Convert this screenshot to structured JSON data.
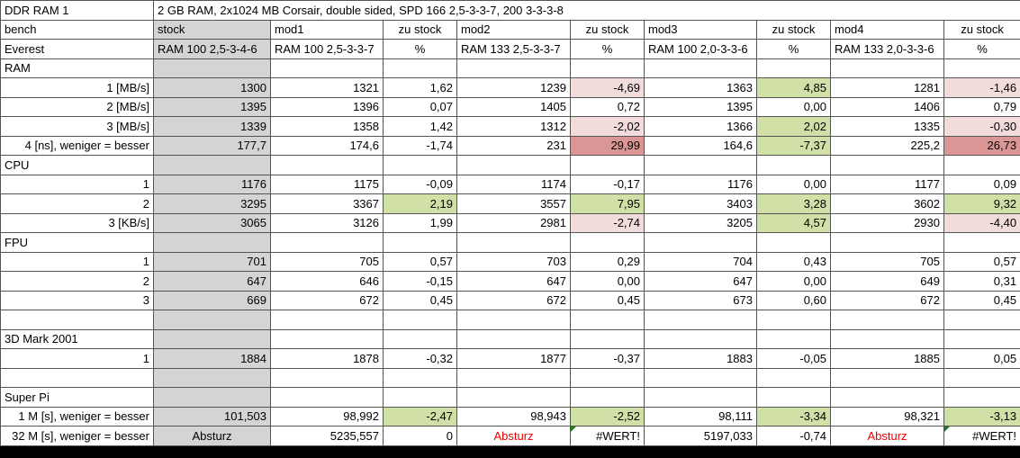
{
  "title": {
    "label": "DDR RAM 1",
    "description": "2 GB RAM, 2x1024 MB Corsair, double sided, SPD 166 2,5-3-3-7, 200 3-3-3-8"
  },
  "columns": {
    "header1": [
      "bench",
      "stock",
      "mod1",
      "zu stock",
      "mod2",
      "zu stock",
      "mod3",
      "zu stock",
      "mod4",
      "zu stock"
    ],
    "header2": [
      "Everest",
      "RAM 100 2,5-3-4-6",
      "RAM 100 2,5-3-3-7",
      "%",
      "RAM 133 2,5-3-3-7",
      "%",
      "RAM 100 2,0-3-3-6",
      "%",
      "RAM 133 2,0-3-3-6",
      "%"
    ]
  },
  "rows": [
    {
      "label": "RAM",
      "section": true
    },
    {
      "label": "1 [MB/s]",
      "cells": [
        "1300",
        "1321",
        "1,62",
        "1239",
        {
          "v": "-4,69",
          "bg": "pink"
        },
        "1363",
        {
          "v": "4,85",
          "bg": "green"
        },
        "1281",
        {
          "v": "-1,46",
          "bg": "pink"
        }
      ]
    },
    {
      "label": "2 [MB/s]",
      "cells": [
        "1395",
        "1396",
        "0,07",
        "1405",
        "0,72",
        "1395",
        "0,00",
        "1406",
        "0,79"
      ]
    },
    {
      "label": "3 [MB/s]",
      "cells": [
        "1339",
        "1358",
        "1,42",
        "1312",
        {
          "v": "-2,02",
          "bg": "pink"
        },
        "1366",
        {
          "v": "2,02",
          "bg": "green"
        },
        "1335",
        {
          "v": "-0,30",
          "bg": "pink"
        }
      ]
    },
    {
      "label": "4 [ns], weniger = besser",
      "cells": [
        "177,7",
        "174,6",
        "-1,74",
        "231",
        {
          "v": "29,99",
          "bg": "darkred"
        },
        "164,6",
        {
          "v": "-7,37",
          "bg": "green"
        },
        "225,2",
        {
          "v": "26,73",
          "bg": "darkred"
        }
      ]
    },
    {
      "label": "CPU",
      "section": true
    },
    {
      "label": "1",
      "cells": [
        "1176",
        "1175",
        "-0,09",
        "1174",
        "-0,17",
        "1176",
        "0,00",
        "1177",
        "0,09"
      ]
    },
    {
      "label": "2",
      "cells": [
        "3295",
        "3367",
        {
          "v": "2,19",
          "bg": "green"
        },
        "3557",
        {
          "v": "7,95",
          "bg": "green"
        },
        "3403",
        {
          "v": "3,28",
          "bg": "green"
        },
        "3602",
        {
          "v": "9,32",
          "bg": "green"
        }
      ]
    },
    {
      "label": "3 [KB/s]",
      "cells": [
        "3065",
        "3126",
        "1,99",
        "2981",
        {
          "v": "-2,74",
          "bg": "pink"
        },
        "3205",
        {
          "v": "4,57",
          "bg": "green"
        },
        "2930",
        {
          "v": "-4,40",
          "bg": "pink"
        }
      ]
    },
    {
      "label": "FPU",
      "section": true
    },
    {
      "label": "1",
      "cells": [
        "701",
        "705",
        "0,57",
        "703",
        "0,29",
        "704",
        "0,43",
        "705",
        "0,57"
      ]
    },
    {
      "label": "2",
      "cells": [
        "647",
        "646",
        "-0,15",
        "647",
        "0,00",
        "647",
        "0,00",
        "649",
        "0,31"
      ]
    },
    {
      "label": "3",
      "cells": [
        "669",
        "672",
        "0,45",
        "672",
        "0,45",
        "673",
        "0,60",
        "672",
        "0,45"
      ]
    },
    {
      "label": "",
      "section": true
    },
    {
      "label": "3D Mark 2001",
      "section": true
    },
    {
      "label": "1",
      "cells": [
        "1884",
        "1878",
        "-0,32",
        "1877",
        "-0,37",
        "1883",
        "-0,05",
        "1885",
        "0,05"
      ]
    },
    {
      "label": "",
      "section": true
    },
    {
      "label": "Super Pi",
      "section": true
    },
    {
      "label": "1 M [s], weniger = besser",
      "cells": [
        "101,503",
        "98,992",
        {
          "v": "-2,47",
          "bg": "green"
        },
        "98,943",
        {
          "v": "-2,52",
          "bg": "green"
        },
        "98,111",
        {
          "v": "-3,34",
          "bg": "green"
        },
        "98,321",
        {
          "v": "-3,13",
          "bg": "green"
        }
      ]
    },
    {
      "label": "32 M [s], weniger = besser",
      "cells": [
        {
          "v": "Absturz",
          "align": "center"
        },
        "5235,557",
        "0",
        {
          "v": "Absturz",
          "fg": "red",
          "align": "center"
        },
        {
          "v": "#WERT!",
          "err": true
        },
        "5197,033",
        "-0,74",
        {
          "v": "Absturz",
          "fg": "red",
          "align": "center"
        },
        {
          "v": "#WERT!",
          "err": true
        }
      ]
    }
  ],
  "colors": {
    "stock_bg": "#d4d4d4",
    "positive_green": "#d0e0a6",
    "negative_pink": "#f2dcdb",
    "strong_negative_red": "#d99694",
    "crash_text_red": "#ee0000",
    "error_indicator_green": "#217c21",
    "grid_line": "#555555",
    "bottom_bar": "#000000"
  }
}
